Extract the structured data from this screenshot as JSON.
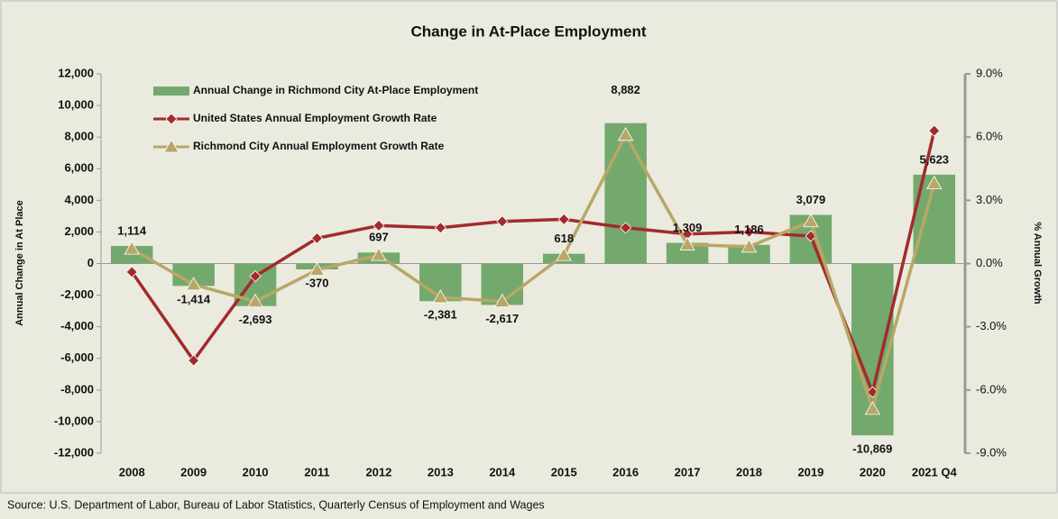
{
  "chart_data": {
    "type": "bar",
    "title": "Change in At-Place Employment",
    "ylabel": "Annual Change in At Place",
    "y2label": "% Annual Growth",
    "source": "Source: U.S. Department of Labor, Bureau of Labor Statistics, Quarterly Census of Employment and Wages",
    "categories": [
      "2008",
      "2009",
      "2010",
      "2011",
      "2012",
      "2013",
      "2014",
      "2015",
      "2016",
      "2017",
      "2018",
      "2019",
      "2020",
      "2021 Q4"
    ],
    "series": [
      {
        "name": "Annual Change in Richmond City At-Place Employment",
        "type": "bar",
        "color": "#74a96e",
        "values": [
          1114,
          -1414,
          -2693,
          -370,
          697,
          -2381,
          -2617,
          618,
          8882,
          1309,
          1186,
          3079,
          -10869,
          5623
        ],
        "value_labels": [
          "1,114",
          "-1,414",
          "-2,693",
          "-370",
          "697",
          "-2,381",
          "-2,617",
          "618",
          "8,882",
          "1,309",
          "1,186",
          "3,079",
          "-10,869",
          "5,623"
        ]
      },
      {
        "name": "United States Annual Employment Growth Rate",
        "type": "line",
        "axis": "y2",
        "color": "#a32a2d",
        "marker": "diamond",
        "values": [
          -0.4,
          -4.6,
          -0.6,
          1.2,
          1.8,
          1.7,
          2.0,
          2.1,
          1.7,
          1.4,
          1.5,
          1.3,
          -6.1,
          6.3
        ]
      },
      {
        "name": "Richmond City Annual Employment Growth Rate",
        "type": "line",
        "axis": "y2",
        "color": "#b8a766",
        "marker": "triangle",
        "values": [
          0.7,
          -1.0,
          -1.8,
          -0.3,
          0.4,
          -1.6,
          -1.8,
          0.4,
          6.1,
          0.9,
          0.8,
          2.0,
          -6.9,
          3.8
        ]
      }
    ],
    "ylim": [
      -12000,
      12000
    ],
    "yticks": [
      {
        "value": -12000,
        "label": "-12,000"
      },
      {
        "value": -10000,
        "label": "-10,000"
      },
      {
        "value": -8000,
        "label": "-8,000"
      },
      {
        "value": -6000,
        "label": "-6,000"
      },
      {
        "value": -4000,
        "label": "-4,000"
      },
      {
        "value": -2000,
        "label": "-2,000"
      },
      0,
      {
        "value": 2000,
        "label": "2,000"
      },
      {
        "value": 4000,
        "label": "4,000"
      },
      {
        "value": 6000,
        "label": "6,000"
      },
      {
        "value": 8000,
        "label": "8,000"
      },
      {
        "value": 10000,
        "label": "10,000"
      },
      {
        "value": 12000,
        "label": "12,000"
      }
    ],
    "y2lim": [
      -9,
      9
    ],
    "y2ticks": [
      {
        "value": -9,
        "label": "-9.0%"
      },
      {
        "value": -6,
        "label": "-6.0%"
      },
      {
        "value": -3,
        "label": "-3.0%"
      },
      {
        "value": 0,
        "label": "0.0%"
      },
      {
        "value": 3,
        "label": "3.0%"
      },
      {
        "value": 6,
        "label": "6.0%"
      },
      {
        "value": 9,
        "label": "9.0%"
      }
    ],
    "background": "#ebeadf"
  }
}
